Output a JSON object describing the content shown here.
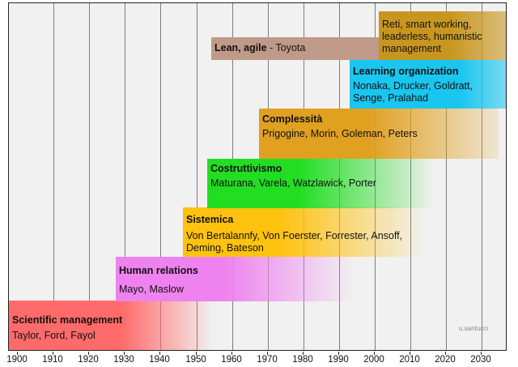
{
  "axis": {
    "years": [
      "1900",
      "1910",
      "1920",
      "1930",
      "1940",
      "1950",
      "1960",
      "1970",
      "1980",
      "1990",
      "2000",
      "2010",
      "2020",
      "2030"
    ]
  },
  "eras": [
    {
      "title": "Scientific management",
      "people": "Taylor, Ford, Fayol",
      "start": 1900,
      "color": "#ff6b6b"
    },
    {
      "title": "Human relations",
      "people": "Mayo, Maslow",
      "start": 1928,
      "color": "#ee82ee"
    },
    {
      "title": "Sistemica",
      "people": "Von Bertalannfy, Von Foerster, Forrester, Ansoff, Deming,  Bateson",
      "start": 1947,
      "color": "#ffc20e"
    },
    {
      "title": "Costruttivismo",
      "people": "Maturana, Varela, Watzlawick, Porter",
      "start": 1953,
      "color": "#22dd22"
    },
    {
      "title": "Complessità",
      "people": "Prigogine, Morin, Goleman, Peters",
      "start": 1969,
      "color": "#e0a020"
    },
    {
      "title": "Learning organization",
      "people": "Nonaka, Drucker, Goldratt, Senge, Pralahad",
      "start": 1994,
      "color": "#19c6f0"
    },
    {
      "title": "Lean, agile",
      "title_suffix": " - Toyota",
      "people": "",
      "start": 1955,
      "color": "#c09a88"
    },
    {
      "title": "",
      "people": "Reti, smart working, leaderless, humanistic management",
      "start": 2002,
      "color": "#c8961e"
    }
  ],
  "credit": "u.santucci"
}
